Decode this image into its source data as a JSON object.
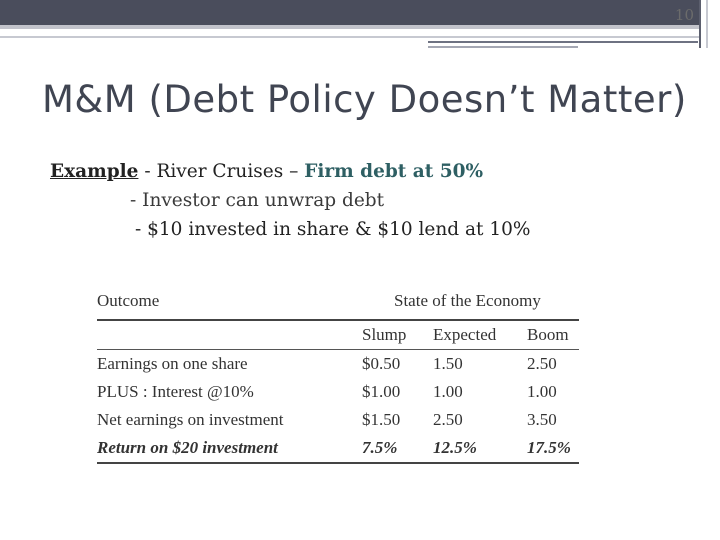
{
  "page_number": "10",
  "title": "M&M (Debt Policy Doesn’t Matter)",
  "body": {
    "line1": {
      "example": "Example",
      "mid": " - River Cruises – ",
      "firm_debt": "Firm debt at 50%"
    },
    "line2": "- Investor can unwrap debt",
    "line3": "- $10 invested in share & $10 lend at 10%"
  },
  "table": {
    "outcome_header": "Outcome",
    "state_header": "State of the Economy",
    "columns": [
      "Slump",
      "Expected",
      "Boom"
    ],
    "rows": [
      {
        "label": "Earnings on one share",
        "values": [
          "$0.50",
          "1.50",
          "2.50"
        ]
      },
      {
        "label": "PLUS : Interest @10%",
        "values": [
          "$1.00",
          "1.00",
          "1.00"
        ]
      },
      {
        "label": "Net earnings on investment",
        "values": [
          "$1.50",
          "2.50",
          "3.50"
        ]
      },
      {
        "label": "Return on $20 investment",
        "values": [
          "7.5%",
          "12.5%",
          "17.5%"
        ]
      }
    ]
  }
}
